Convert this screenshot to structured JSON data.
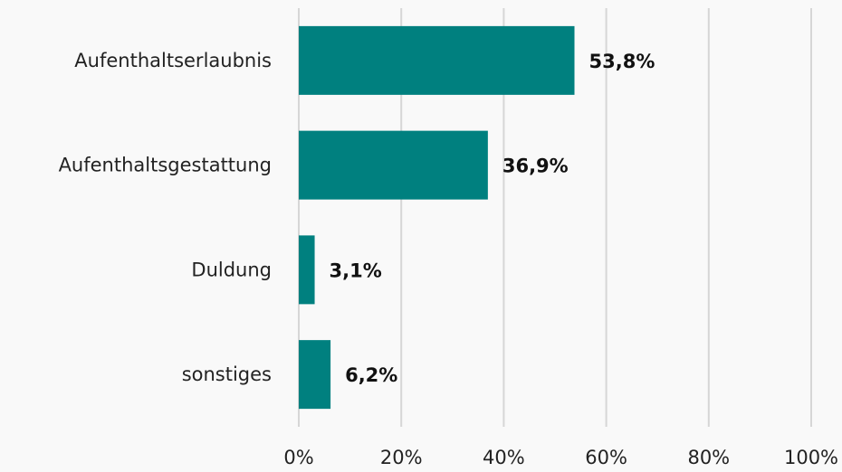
{
  "chart_data": {
    "type": "bar",
    "orientation": "horizontal",
    "categories": [
      "Aufenthaltserlaubnis",
      "Aufenthaltsgestattung",
      "Duldung",
      "sonstiges"
    ],
    "values": [
      53.8,
      36.9,
      3.1,
      6.2
    ],
    "value_labels": [
      "53,8%",
      "36,9%",
      "3,1%",
      "6,2%"
    ],
    "color": "#00807f",
    "xlim": [
      0,
      100
    ],
    "xticks": [
      {
        "value": 0,
        "label": "0%"
      },
      {
        "value": 20,
        "label": "20%"
      },
      {
        "value": 40,
        "label": "40%"
      },
      {
        "value": 60,
        "label": "60%"
      },
      {
        "value": 80,
        "label": "80%"
      },
      {
        "value": 100,
        "label": "100%"
      }
    ],
    "grid": true
  }
}
